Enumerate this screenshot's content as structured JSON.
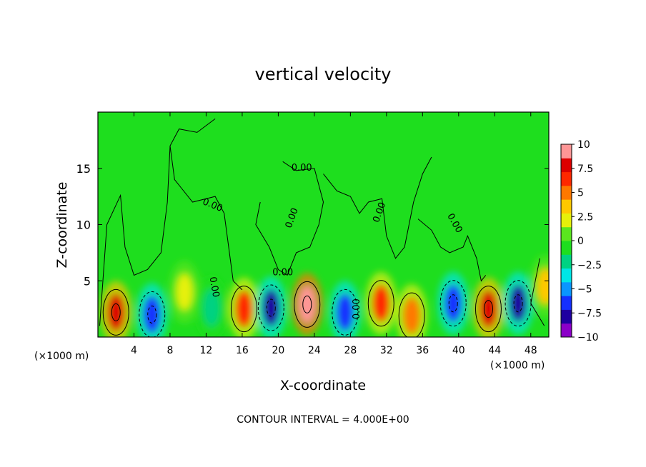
{
  "chart_data": {
    "type": "heatmap",
    "title": "vertical velocity",
    "xlabel": "X-coordinate",
    "ylabel": "Z-coordinate",
    "x_unit_left": "(×1000 m)",
    "x_unit_right": "(×1000 m)",
    "xlim": [
      0,
      50
    ],
    "ylim": [
      0,
      20
    ],
    "x_ticks": [
      4,
      8,
      12,
      16,
      20,
      24,
      28,
      32,
      36,
      40,
      44,
      48
    ],
    "x_tick_labels": [
      "4",
      "8",
      "12",
      "16",
      "20",
      "24",
      "28",
      "32",
      "36",
      "40",
      "44",
      "48"
    ],
    "y_ticks": [
      5,
      10,
      15
    ],
    "y_tick_labels": [
      "5",
      "10",
      "15"
    ],
    "colorbar": {
      "min": -10,
      "max": 10,
      "tick_values": [
        10,
        7.5,
        5,
        2.5,
        0,
        -2.5,
        -5,
        -7.5,
        -10
      ],
      "tick_labels": [
        "10",
        "7.5",
        "5",
        "2.5",
        "0",
        "−2.5",
        "−5",
        "−7.5",
        "−10"
      ],
      "colors": [
        "#8b00c8",
        "#1e00a0",
        "#1430ff",
        "#0a96ff",
        "#00e6e6",
        "#00d282",
        "#1ede1e",
        "#5ae61e",
        "#e6f00a",
        "#ffc800",
        "#ff7800",
        "#ff2800",
        "#dc0000",
        "#ff9696"
      ]
    },
    "contour_labels": [
      "0.00",
      "0.00",
      "0.00",
      "0.00",
      "0.00",
      "0.00",
      "0.00",
      "0.00"
    ],
    "contour_interval_text": "CONTOUR INTERVAL =  4.000E+00",
    "features": [
      {
        "x": 2.0,
        "z": 2.2,
        "w": 8
      },
      {
        "x": 6.0,
        "z": 2.0,
        "w": -7
      },
      {
        "x": 9.6,
        "z": 4.0,
        "w": 2.5
      },
      {
        "x": 12.6,
        "z": 2.6,
        "w": -2
      },
      {
        "x": 16.2,
        "z": 2.5,
        "w": 6
      },
      {
        "x": 19.2,
        "z": 2.6,
        "w": -7.5
      },
      {
        "x": 23.2,
        "z": 2.9,
        "w": 10
      },
      {
        "x": 27.4,
        "z": 2.2,
        "w": -6.5
      },
      {
        "x": 31.4,
        "z": 3.0,
        "w": 6
      },
      {
        "x": 34.8,
        "z": 1.9,
        "w": 4.5
      },
      {
        "x": 39.4,
        "z": 3.0,
        "w": -7
      },
      {
        "x": 43.3,
        "z": 2.5,
        "w": 8.5
      },
      {
        "x": 46.6,
        "z": 3.0,
        "w": -8.5
      },
      {
        "x": 49.6,
        "z": 4.5,
        "w": 3
      }
    ]
  }
}
